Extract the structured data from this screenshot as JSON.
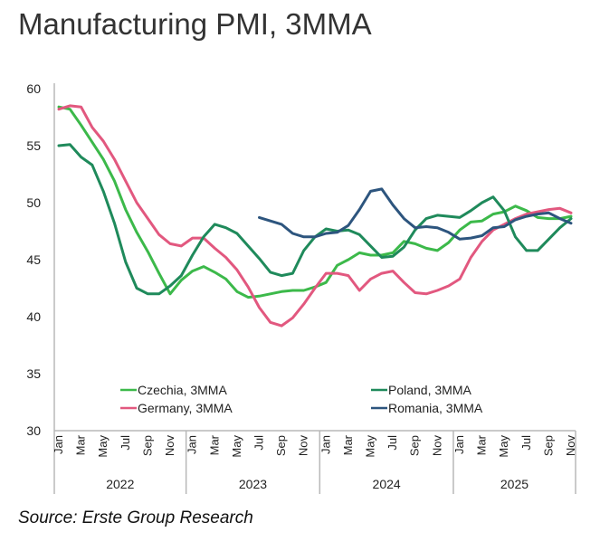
{
  "title": "Manufacturing PMI, 3MMA",
  "source": "Source: Erste Group Research",
  "chart_data": {
    "type": "line",
    "title": "Manufacturing PMI, 3MMA",
    "xlabel": "",
    "ylabel": "",
    "ylim": [
      30,
      60
    ],
    "yticks": [
      30,
      35,
      40,
      45,
      50,
      55,
      60
    ],
    "grid": false,
    "legend_position": "bottom-inside",
    "years": [
      "2022",
      "2023",
      "2024",
      "2025"
    ],
    "month_tick_labels": [
      "Jan",
      "Mar",
      "May",
      "Jul",
      "Sep",
      "Nov"
    ],
    "x": [
      "2022-01",
      "2022-02",
      "2022-03",
      "2022-04",
      "2022-05",
      "2022-06",
      "2022-07",
      "2022-08",
      "2022-09",
      "2022-10",
      "2022-11",
      "2022-12",
      "2023-01",
      "2023-02",
      "2023-03",
      "2023-04",
      "2023-05",
      "2023-06",
      "2023-07",
      "2023-08",
      "2023-09",
      "2023-10",
      "2023-11",
      "2023-12",
      "2024-01",
      "2024-02",
      "2024-03",
      "2024-04",
      "2024-05",
      "2024-06",
      "2024-07",
      "2024-08",
      "2024-09",
      "2024-10",
      "2024-11",
      "2024-12",
      "2025-01",
      "2025-02",
      "2025-03",
      "2025-04",
      "2025-05",
      "2025-06",
      "2025-07",
      "2025-08",
      "2025-09",
      "2025-10",
      "2025-11"
    ],
    "series": [
      {
        "name": "Czechia, 3MMA",
        "color": "#3cb94a",
        "values": [
          58.4,
          58.2,
          56.8,
          55.3,
          53.8,
          51.9,
          49.4,
          47.4,
          45.7,
          43.8,
          42.0,
          43.2,
          44.0,
          44.4,
          43.9,
          43.3,
          42.2,
          41.7,
          41.8,
          42.0,
          42.2,
          42.3,
          42.3,
          42.6,
          43.0,
          44.5,
          45.0,
          45.6,
          45.4,
          45.4,
          45.6,
          46.6,
          46.4,
          46.0,
          45.8,
          46.5,
          47.6,
          48.3,
          48.4,
          49.0,
          49.2,
          49.7,
          49.3,
          48.7,
          48.6,
          48.6,
          48.8
        ]
      },
      {
        "name": "Germany, 3MMA",
        "color": "#e2587f",
        "values": [
          58.2,
          58.5,
          58.4,
          56.6,
          55.4,
          53.8,
          51.9,
          50.0,
          48.6,
          47.2,
          46.4,
          46.2,
          46.9,
          46.9,
          46.0,
          45.2,
          44.1,
          42.6,
          40.8,
          39.5,
          39.2,
          39.9,
          41.1,
          42.5,
          43.8,
          43.8,
          43.6,
          42.3,
          43.3,
          43.8,
          44.0,
          43.0,
          42.1,
          42.0,
          42.3,
          42.7,
          43.3,
          45.2,
          46.6,
          47.6,
          48.1,
          48.6,
          49.0,
          49.2,
          49.4,
          49.5,
          49.1
        ]
      },
      {
        "name": "Poland, 3MMA",
        "color": "#1f8a5b",
        "values": [
          55.0,
          55.1,
          54.0,
          53.3,
          51.0,
          48.2,
          44.8,
          42.5,
          42.0,
          42.0,
          42.7,
          43.6,
          45.4,
          47.0,
          48.1,
          47.8,
          47.3,
          46.2,
          45.1,
          43.9,
          43.6,
          43.8,
          45.8,
          47.0,
          47.7,
          47.5,
          47.6,
          47.2,
          46.2,
          45.2,
          45.3,
          46.1,
          47.6,
          48.6,
          48.9,
          48.8,
          48.7,
          49.3,
          50.0,
          50.5,
          49.3,
          47.0,
          45.8,
          45.8,
          46.8,
          47.8,
          48.6
        ]
      },
      {
        "name": "Romania, 3MMA",
        "color": "#2d557e",
        "values": [
          null,
          null,
          null,
          null,
          null,
          null,
          null,
          null,
          null,
          null,
          null,
          null,
          null,
          null,
          null,
          null,
          null,
          null,
          48.7,
          48.4,
          48.1,
          47.3,
          47.0,
          47.0,
          47.3,
          47.4,
          48.0,
          49.4,
          51.0,
          51.2,
          49.8,
          48.6,
          47.8,
          47.9,
          47.8,
          47.4,
          46.8,
          46.9,
          47.1,
          47.8,
          47.9,
          48.5,
          48.8,
          49.0,
          49.1,
          48.6,
          48.2
        ]
      }
    ]
  }
}
